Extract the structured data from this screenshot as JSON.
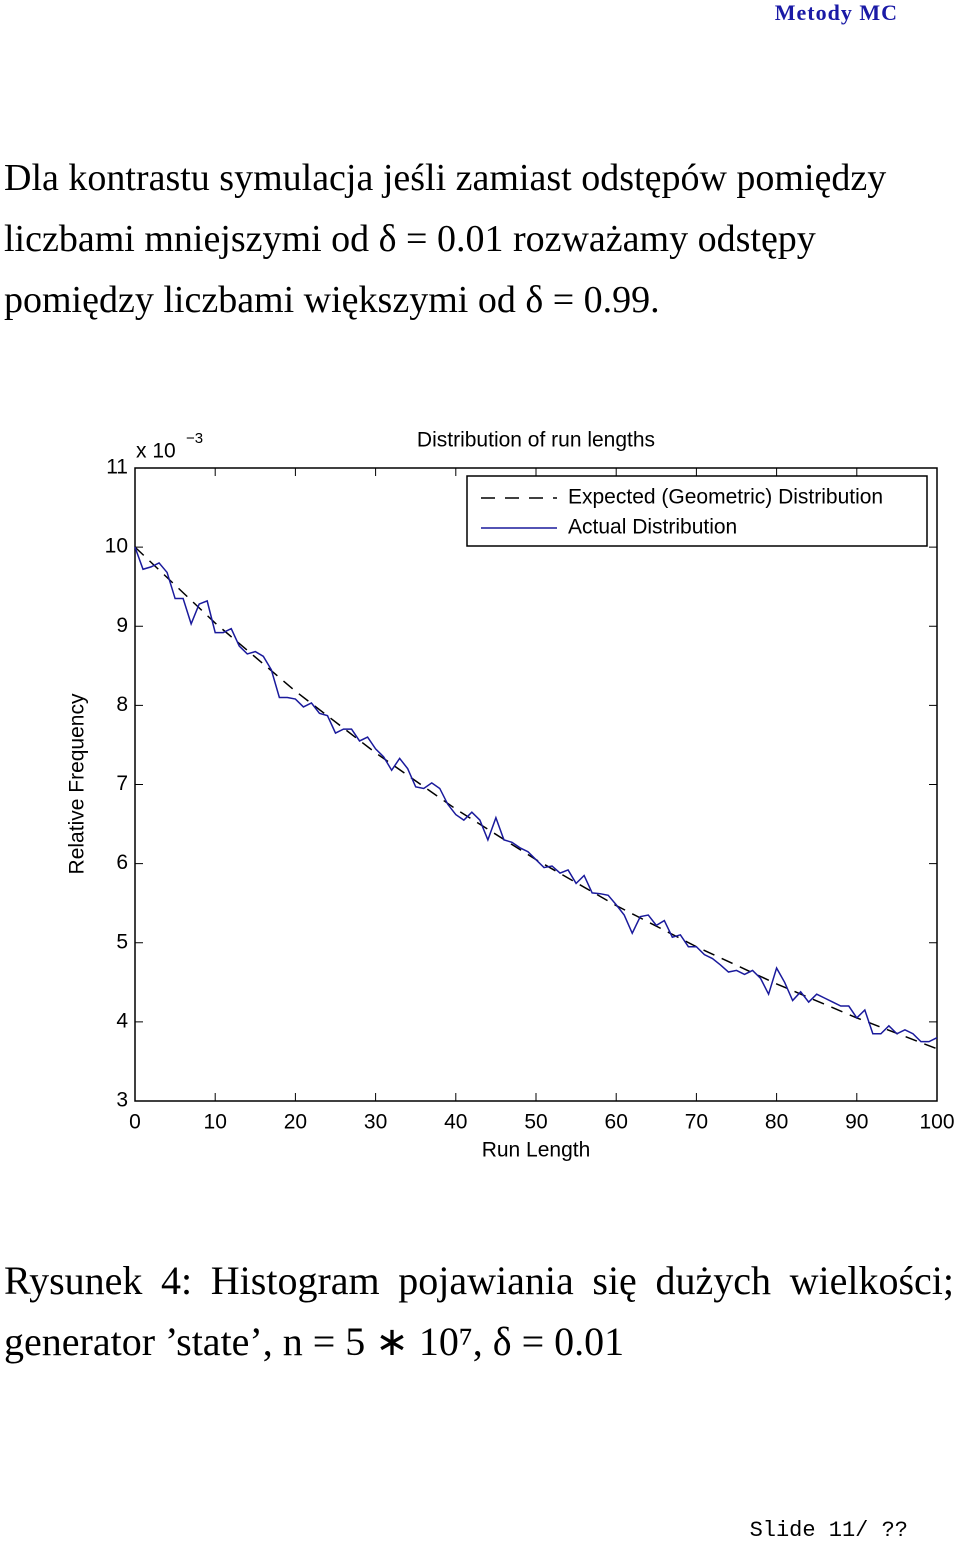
{
  "header": {
    "title": "Metody MC"
  },
  "intro": "Dla kontrastu symulacja jeśli zamiast odstępów pomiędzy liczbami mniejszymi od δ = 0.01 rozważamy odstępy pomiędzy liczbami większymi od δ = 0.99.",
  "chart_data": {
    "type": "line",
    "title": "Distribution of run lengths",
    "xlabel": "Run Length",
    "ylabel": "Relative Frequency",
    "y_multiplier": "x 10",
    "y_multiplier_power": "−3",
    "xlim": [
      0,
      100
    ],
    "xticks": [
      0,
      10,
      20,
      30,
      40,
      50,
      60,
      70,
      80,
      90,
      100
    ],
    "ylim": [
      3,
      11
    ],
    "yticks": [
      3,
      4,
      5,
      6,
      7,
      8,
      9,
      10,
      11
    ],
    "legend": "upper right",
    "series": [
      {
        "name": "Expected (Geometric) Distribution",
        "color": "#000000",
        "style": "dashed",
        "x": [
          0,
          10,
          20,
          30,
          40,
          50,
          60,
          70,
          80,
          90,
          100
        ],
        "values": [
          10,
          9.04,
          8.18,
          7.4,
          6.69,
          6.05,
          5.47,
          4.95,
          4.48,
          4.05,
          3.66
        ]
      },
      {
        "name": "Actual Distribution",
        "color": "#1a1a9c",
        "style": "solid",
        "x": [
          0,
          1,
          2,
          3,
          4,
          5,
          6,
          7,
          8,
          9,
          10,
          11,
          12,
          13,
          14,
          15,
          16,
          17,
          18,
          19,
          20,
          21,
          22,
          23,
          24,
          25,
          26,
          27,
          28,
          29,
          30,
          31,
          32,
          33,
          34,
          35,
          36,
          37,
          38,
          39,
          40,
          41,
          42,
          43,
          44,
          45,
          46,
          47,
          48,
          49,
          50,
          51,
          52,
          53,
          54,
          55,
          56,
          57,
          58,
          59,
          60,
          61,
          62,
          63,
          64,
          65,
          66,
          67,
          68,
          69,
          70,
          71,
          72,
          73,
          74,
          75,
          76,
          77,
          78,
          79,
          80,
          81,
          82,
          83,
          84,
          85,
          86,
          87,
          88,
          89,
          90,
          91,
          92,
          93,
          94,
          95,
          96,
          97,
          98,
          99,
          100
        ],
        "values": [
          10,
          9.72,
          9.75,
          9.8,
          9.68,
          9.35,
          9.35,
          9.03,
          9.28,
          9.32,
          8.92,
          8.92,
          8.97,
          8.75,
          8.65,
          8.68,
          8.62,
          8.45,
          8.1,
          8.1,
          8.08,
          7.98,
          8.03,
          7.9,
          7.87,
          7.65,
          7.7,
          7.7,
          7.55,
          7.6,
          7.45,
          7.35,
          7.18,
          7.33,
          7.2,
          6.97,
          6.95,
          7.02,
          6.95,
          6.75,
          6.62,
          6.55,
          6.65,
          6.55,
          6.3,
          6.58,
          6.3,
          6.27,
          6.2,
          6.15,
          6.05,
          5.95,
          5.97,
          5.88,
          5.92,
          5.75,
          5.85,
          5.63,
          5.62,
          5.6,
          5.48,
          5.35,
          5.12,
          5.33,
          5.35,
          5.22,
          5.28,
          5.07,
          5.1,
          4.95,
          4.95,
          4.85,
          4.8,
          4.72,
          4.63,
          4.65,
          4.6,
          4.65,
          4.55,
          4.35,
          4.68,
          4.5,
          4.27,
          4.38,
          4.25,
          4.35,
          4.3,
          4.25,
          4.2,
          4.2,
          4.05,
          4.15,
          3.85,
          3.85,
          3.95,
          3.85,
          3.9,
          3.85,
          3.75,
          3.75,
          3.8
        ]
      }
    ]
  },
  "caption": "Rysunek 4: Histogram pojawiania się dużych wielkości; generator ’state’, n = 5 ∗ 10⁷, δ = 0.01",
  "footer": "Slide 11/ ??"
}
